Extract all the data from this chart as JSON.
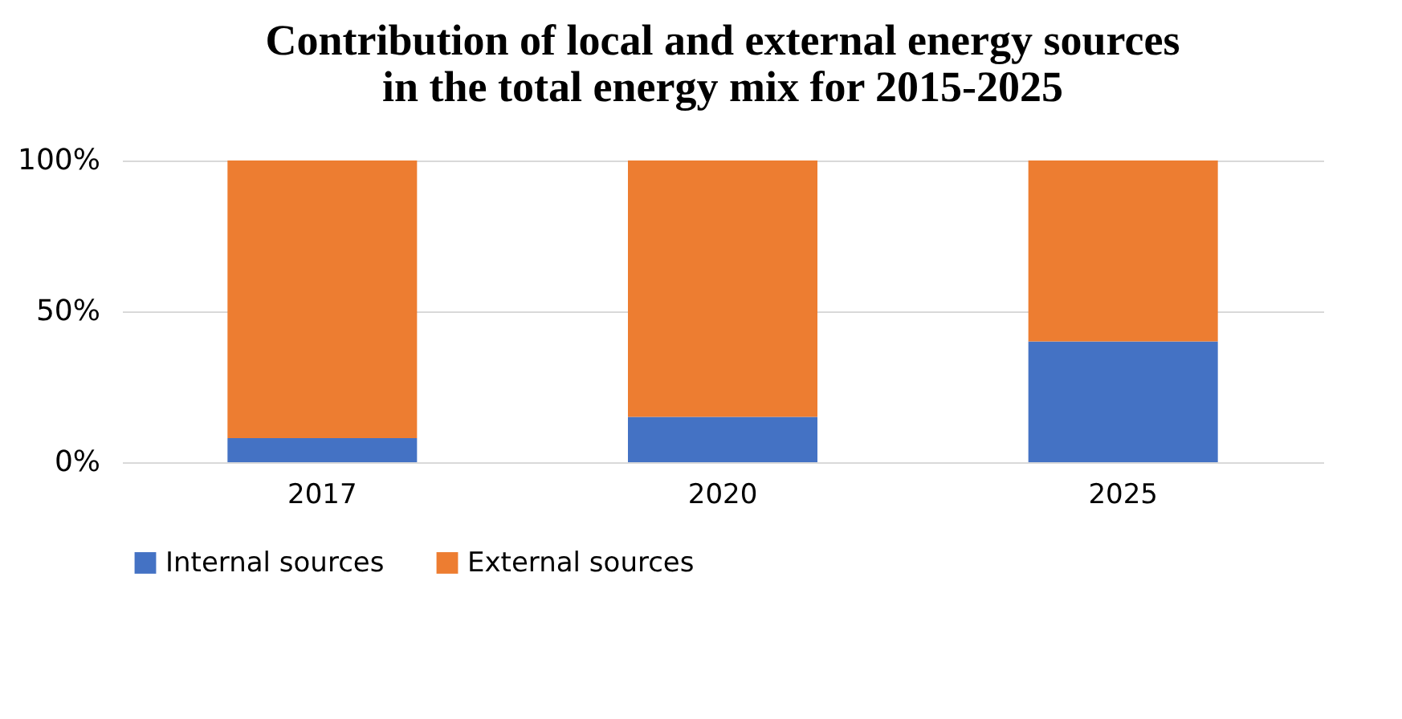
{
  "chart_data": {
    "type": "bar",
    "title": "Contribution of local and external energy sources\nin the total energy mix for 2015-2025",
    "categories": [
      "2017",
      "2020",
      "2025"
    ],
    "stacked": true,
    "series": [
      {
        "name": "Internal sources",
        "color": "#4472c4",
        "values": [
          8,
          15,
          40
        ]
      },
      {
        "name": "External sources",
        "color": "#ed7d31",
        "values": [
          92,
          85,
          60
        ]
      }
    ],
    "ylim": [
      0,
      100
    ],
    "yticks": [
      {
        "value": 0,
        "label": "0%"
      },
      {
        "value": 50,
        "label": "50%"
      },
      {
        "value": 100,
        "label": "100%"
      }
    ],
    "grid": "y",
    "legend": "bottom"
  }
}
